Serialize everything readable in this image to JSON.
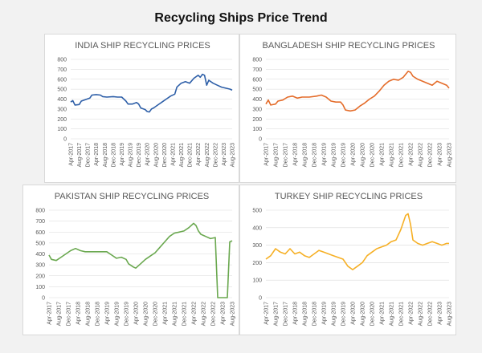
{
  "page": {
    "title": "Recycling Ships Price Trend"
  },
  "chart_data": [
    {
      "type": "line",
      "title": "INDIA SHIP RECYCLING PRICES",
      "color": "#2E5FA8",
      "ylim": [
        0,
        800
      ],
      "yticks": [
        0,
        100,
        200,
        300,
        400,
        500,
        600,
        700,
        800
      ],
      "xlim": [
        "2017-04",
        "2023-08"
      ],
      "xticks": [
        "Apr-2017",
        "Aug-2017",
        "Dec-2017",
        "Apr-2018",
        "Aug-2018",
        "Dec-2018",
        "Apr-2019",
        "Aug-2019",
        "Dec-2019",
        "Apr-2020",
        "Aug-2020",
        "Dec-2020",
        "Apr-2021",
        "Aug-2021",
        "Dec-2021",
        "Apr-2022",
        "Aug-2022",
        "Dec-2022",
        "Apr-2023",
        "Aug-2023"
      ],
      "grid": true,
      "series": [
        {
          "points": [
            [
              "2017-04",
              370
            ],
            [
              "2017-05",
              385
            ],
            [
              "2017-06",
              340
            ],
            [
              "2017-08",
              345
            ],
            [
              "2017-09",
              380
            ],
            [
              "2017-11",
              395
            ],
            [
              "2018-01",
              410
            ],
            [
              "2018-02",
              440
            ],
            [
              "2018-04",
              445
            ],
            [
              "2018-06",
              440
            ],
            [
              "2018-07",
              425
            ],
            [
              "2018-09",
              420
            ],
            [
              "2018-12",
              425
            ],
            [
              "2019-02",
              420
            ],
            [
              "2019-04",
              420
            ],
            [
              "2019-06",
              380
            ],
            [
              "2019-07",
              350
            ],
            [
              "2019-09",
              350
            ],
            [
              "2019-11",
              365
            ],
            [
              "2019-12",
              350
            ],
            [
              "2020-01",
              310
            ],
            [
              "2020-03",
              295
            ],
            [
              "2020-04",
              275
            ],
            [
              "2020-05",
              270
            ],
            [
              "2020-06",
              300
            ],
            [
              "2020-07",
              310
            ],
            [
              "2020-09",
              340
            ],
            [
              "2020-11",
              370
            ],
            [
              "2021-01",
              400
            ],
            [
              "2021-03",
              430
            ],
            [
              "2021-05",
              450
            ],
            [
              "2021-06",
              520
            ],
            [
              "2021-08",
              560
            ],
            [
              "2021-10",
              575
            ],
            [
              "2021-12",
              560
            ],
            [
              "2022-02",
              610
            ],
            [
              "2022-04",
              640
            ],
            [
              "2022-05",
              620
            ],
            [
              "2022-06",
              650
            ],
            [
              "2022-07",
              640
            ],
            [
              "2022-08",
              540
            ],
            [
              "2022-09",
              590
            ],
            [
              "2022-11",
              560
            ],
            [
              "2023-01",
              540
            ],
            [
              "2023-03",
              520
            ],
            [
              "2023-05",
              510
            ],
            [
              "2023-07",
              500
            ],
            [
              "2023-08",
              490
            ]
          ]
        }
      ]
    },
    {
      "type": "line",
      "title": "BANGLADESH SHIP RECYCLING PRICES",
      "color": "#E46C2A",
      "ylim": [
        0,
        800
      ],
      "yticks": [
        0,
        100,
        200,
        300,
        400,
        500,
        600,
        700,
        800
      ],
      "xlim": [
        "2017-04",
        "2023-08"
      ],
      "xticks": [
        "Apr-2017",
        "Aug-2017",
        "Dec-2017",
        "Apr-2018",
        "Aug-2018",
        "Dec-2018",
        "Apr-2019",
        "Aug-2019",
        "Dec-2019",
        "Apr-2020",
        "Aug-2020",
        "Dec-2020",
        "Apr-2021",
        "Aug-2021",
        "Dec-2021",
        "Apr-2022",
        "Aug-2022",
        "Dec-2022",
        "Apr-2023",
        "Aug-2023"
      ],
      "grid": true,
      "series": [
        {
          "points": [
            [
              "2017-04",
              350
            ],
            [
              "2017-05",
              390
            ],
            [
              "2017-06",
              340
            ],
            [
              "2017-08",
              350
            ],
            [
              "2017-09",
              380
            ],
            [
              "2017-11",
              390
            ],
            [
              "2018-01",
              420
            ],
            [
              "2018-03",
              430
            ],
            [
              "2018-05",
              410
            ],
            [
              "2018-07",
              420
            ],
            [
              "2018-10",
              420
            ],
            [
              "2019-01",
              430
            ],
            [
              "2019-03",
              440
            ],
            [
              "2019-05",
              420
            ],
            [
              "2019-07",
              380
            ],
            [
              "2019-09",
              370
            ],
            [
              "2019-11",
              370
            ],
            [
              "2019-12",
              340
            ],
            [
              "2020-01",
              290
            ],
            [
              "2020-03",
              280
            ],
            [
              "2020-05",
              290
            ],
            [
              "2020-07",
              330
            ],
            [
              "2020-09",
              360
            ],
            [
              "2020-11",
              400
            ],
            [
              "2021-01",
              430
            ],
            [
              "2021-03",
              480
            ],
            [
              "2021-05",
              540
            ],
            [
              "2021-07",
              580
            ],
            [
              "2021-09",
              600
            ],
            [
              "2021-11",
              590
            ],
            [
              "2022-01",
              620
            ],
            [
              "2022-03",
              680
            ],
            [
              "2022-04",
              670
            ],
            [
              "2022-05",
              630
            ],
            [
              "2022-07",
              600
            ],
            [
              "2022-09",
              580
            ],
            [
              "2022-11",
              560
            ],
            [
              "2023-01",
              540
            ],
            [
              "2023-03",
              580
            ],
            [
              "2023-05",
              560
            ],
            [
              "2023-07",
              540
            ],
            [
              "2023-08",
              510
            ]
          ]
        }
      ]
    },
    {
      "type": "line",
      "title": "PAKISTAN SHIP RECYCLING PRICES",
      "color": "#6AA84F",
      "ylim": [
        0,
        800
      ],
      "yticks": [
        0,
        100,
        200,
        300,
        400,
        500,
        600,
        700,
        800
      ],
      "xlim": [
        "2017-04",
        "2023-08"
      ],
      "xticks": [
        "Apr-2017",
        "Aug-2017",
        "Dec-2017",
        "Apr-2018",
        "Aug-2018",
        "Dec-2018",
        "Apr-2019",
        "Aug-2019",
        "Dec-2019",
        "Apr-2020",
        "Aug-2020",
        "Dec-2020",
        "Apr-2021",
        "Aug-2021",
        "Dec-2021",
        "Apr-2022",
        "Aug-2022",
        "Dec-2022",
        "Apr-2023",
        "Aug-2023"
      ],
      "grid": true,
      "series": [
        {
          "points": [
            [
              "2017-04",
              390
            ],
            [
              "2017-05",
              350
            ],
            [
              "2017-07",
              340
            ],
            [
              "2017-09",
              370
            ],
            [
              "2017-11",
              400
            ],
            [
              "2018-01",
              430
            ],
            [
              "2018-03",
              450
            ],
            [
              "2018-05",
              430
            ],
            [
              "2018-07",
              420
            ],
            [
              "2018-10",
              420
            ],
            [
              "2019-01",
              420
            ],
            [
              "2019-04",
              420
            ],
            [
              "2019-06",
              390
            ],
            [
              "2019-08",
              360
            ],
            [
              "2019-10",
              370
            ],
            [
              "2019-12",
              350
            ],
            [
              "2020-01",
              310
            ],
            [
              "2020-03",
              280
            ],
            [
              "2020-04",
              270
            ],
            [
              "2020-06",
              310
            ],
            [
              "2020-08",
              350
            ],
            [
              "2020-10",
              380
            ],
            [
              "2020-12",
              410
            ],
            [
              "2021-02",
              460
            ],
            [
              "2021-04",
              510
            ],
            [
              "2021-06",
              560
            ],
            [
              "2021-08",
              590
            ],
            [
              "2021-10",
              600
            ],
            [
              "2021-12",
              610
            ],
            [
              "2022-02",
              640
            ],
            [
              "2022-04",
              680
            ],
            [
              "2022-05",
              660
            ],
            [
              "2022-06",
              610
            ],
            [
              "2022-07",
              580
            ],
            [
              "2022-09",
              560
            ],
            [
              "2022-11",
              540
            ],
            [
              "2023-01",
              550
            ],
            [
              "2023-02",
              0
            ],
            [
              "2023-03",
              0
            ],
            [
              "2023-04",
              0
            ],
            [
              "2023-05",
              0
            ],
            [
              "2023-06",
              0
            ],
            [
              "2023-07",
              510
            ],
            [
              "2023-08",
              520
            ]
          ]
        }
      ]
    },
    {
      "type": "line",
      "title": "TURKEY SHIP RECYCLING PRICES",
      "color": "#F6B026",
      "ylim": [
        0,
        500
      ],
      "yticks": [
        0,
        100,
        200,
        300,
        400,
        500
      ],
      "xlim": [
        "2017-04",
        "2023-08"
      ],
      "xticks": [
        "Apr-2017",
        "Aug-2017",
        "Dec-2017",
        "Apr-2018",
        "Aug-2018",
        "Dec-2018",
        "Apr-2019",
        "Aug-2019",
        "Dec-2019",
        "Apr-2020",
        "Aug-2020",
        "Dec-2020",
        "Apr-2021",
        "Aug-2021",
        "Dec-2021",
        "Apr-2022",
        "Aug-2022",
        "Dec-2022",
        "Apr-2023",
        "Aug-2023"
      ],
      "grid": true,
      "series": [
        {
          "points": [
            [
              "2017-04",
              220
            ],
            [
              "2017-06",
              240
            ],
            [
              "2017-08",
              280
            ],
            [
              "2017-10",
              260
            ],
            [
              "2017-12",
              250
            ],
            [
              "2018-02",
              280
            ],
            [
              "2018-04",
              250
            ],
            [
              "2018-06",
              260
            ],
            [
              "2018-08",
              240
            ],
            [
              "2018-10",
              230
            ],
            [
              "2018-12",
              250
            ],
            [
              "2019-02",
              270
            ],
            [
              "2019-04",
              260
            ],
            [
              "2019-06",
              250
            ],
            [
              "2019-08",
              240
            ],
            [
              "2019-10",
              230
            ],
            [
              "2019-12",
              220
            ],
            [
              "2020-02",
              180
            ],
            [
              "2020-04",
              160
            ],
            [
              "2020-06",
              180
            ],
            [
              "2020-08",
              200
            ],
            [
              "2020-10",
              240
            ],
            [
              "2020-12",
              260
            ],
            [
              "2021-02",
              280
            ],
            [
              "2021-04",
              290
            ],
            [
              "2021-06",
              300
            ],
            [
              "2021-08",
              320
            ],
            [
              "2021-10",
              330
            ],
            [
              "2021-12",
              390
            ],
            [
              "2022-02",
              470
            ],
            [
              "2022-03",
              480
            ],
            [
              "2022-04",
              420
            ],
            [
              "2022-05",
              330
            ],
            [
              "2022-07",
              310
            ],
            [
              "2022-09",
              300
            ],
            [
              "2022-11",
              310
            ],
            [
              "2023-01",
              320
            ],
            [
              "2023-03",
              310
            ],
            [
              "2023-05",
              300
            ],
            [
              "2023-07",
              310
            ],
            [
              "2023-08",
              310
            ]
          ]
        }
      ]
    }
  ]
}
